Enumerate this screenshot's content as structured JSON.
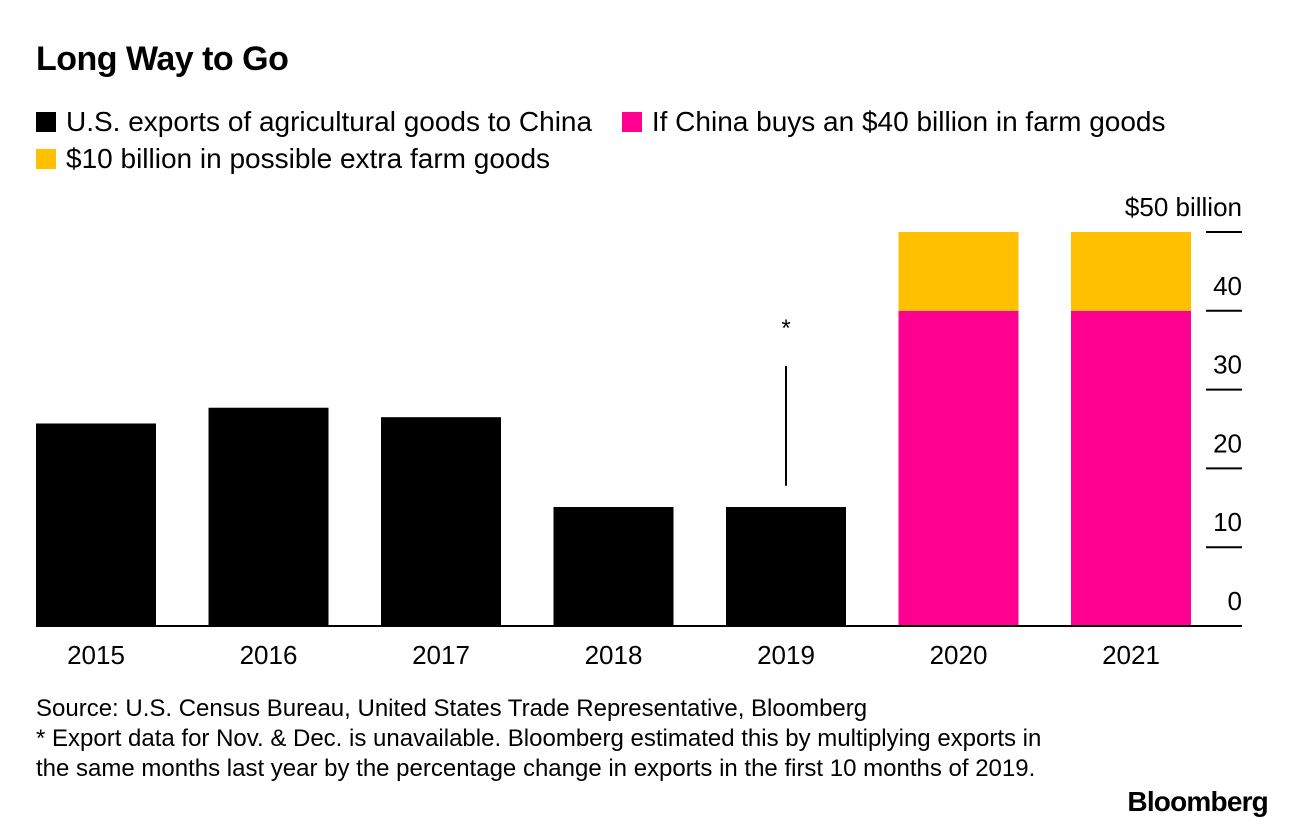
{
  "chart_data": {
    "type": "bar",
    "title": "Long Way to Go",
    "categories": [
      "2015",
      "2016",
      "2017",
      "2018",
      "2019",
      "2020",
      "2021"
    ],
    "series": [
      {
        "name": "U.S. exports of agricultural goods to China",
        "color": "#000000",
        "values": [
          25.7,
          27.7,
          26.5,
          15.1,
          15.1,
          null,
          null
        ]
      },
      {
        "name": "If China buys an $40 billion in farm goods",
        "color": "#ff0090",
        "values": [
          null,
          null,
          null,
          null,
          null,
          40,
          40
        ]
      },
      {
        "name": "$10 billion in possible extra farm goods",
        "color": "#ffc000",
        "values": [
          null,
          null,
          null,
          null,
          null,
          10,
          10
        ]
      }
    ],
    "stacked": true,
    "ylim": [
      0,
      50
    ],
    "yticks": [
      0,
      10,
      20,
      30,
      40,
      50
    ],
    "ytick_labels": [
      "0",
      "10",
      "20",
      "30",
      "40",
      "$50 billion"
    ],
    "yaxis_side": "right",
    "annotation": {
      "category": "2019",
      "text": "*",
      "line_from": 17.8,
      "line_to": 33
    }
  },
  "legend": [
    {
      "label": "U.S. exports of agricultural goods to China",
      "color": "#000000"
    },
    {
      "label": "If China buys an $40 billion in farm goods",
      "color": "#ff0090"
    },
    {
      "label": "$10 billion in possible extra farm goods",
      "color": "#ffc000"
    }
  ],
  "footnote": {
    "source": "Source: U.S. Census Bureau, United States Trade Representative, Bloomberg",
    "note": "* Export data for Nov. & Dec. is unavailable. Bloomberg estimated this by multiplying exports in the same months last year by the percentage change in exports in the first 10 months of 2019."
  },
  "brand": "Bloomberg"
}
